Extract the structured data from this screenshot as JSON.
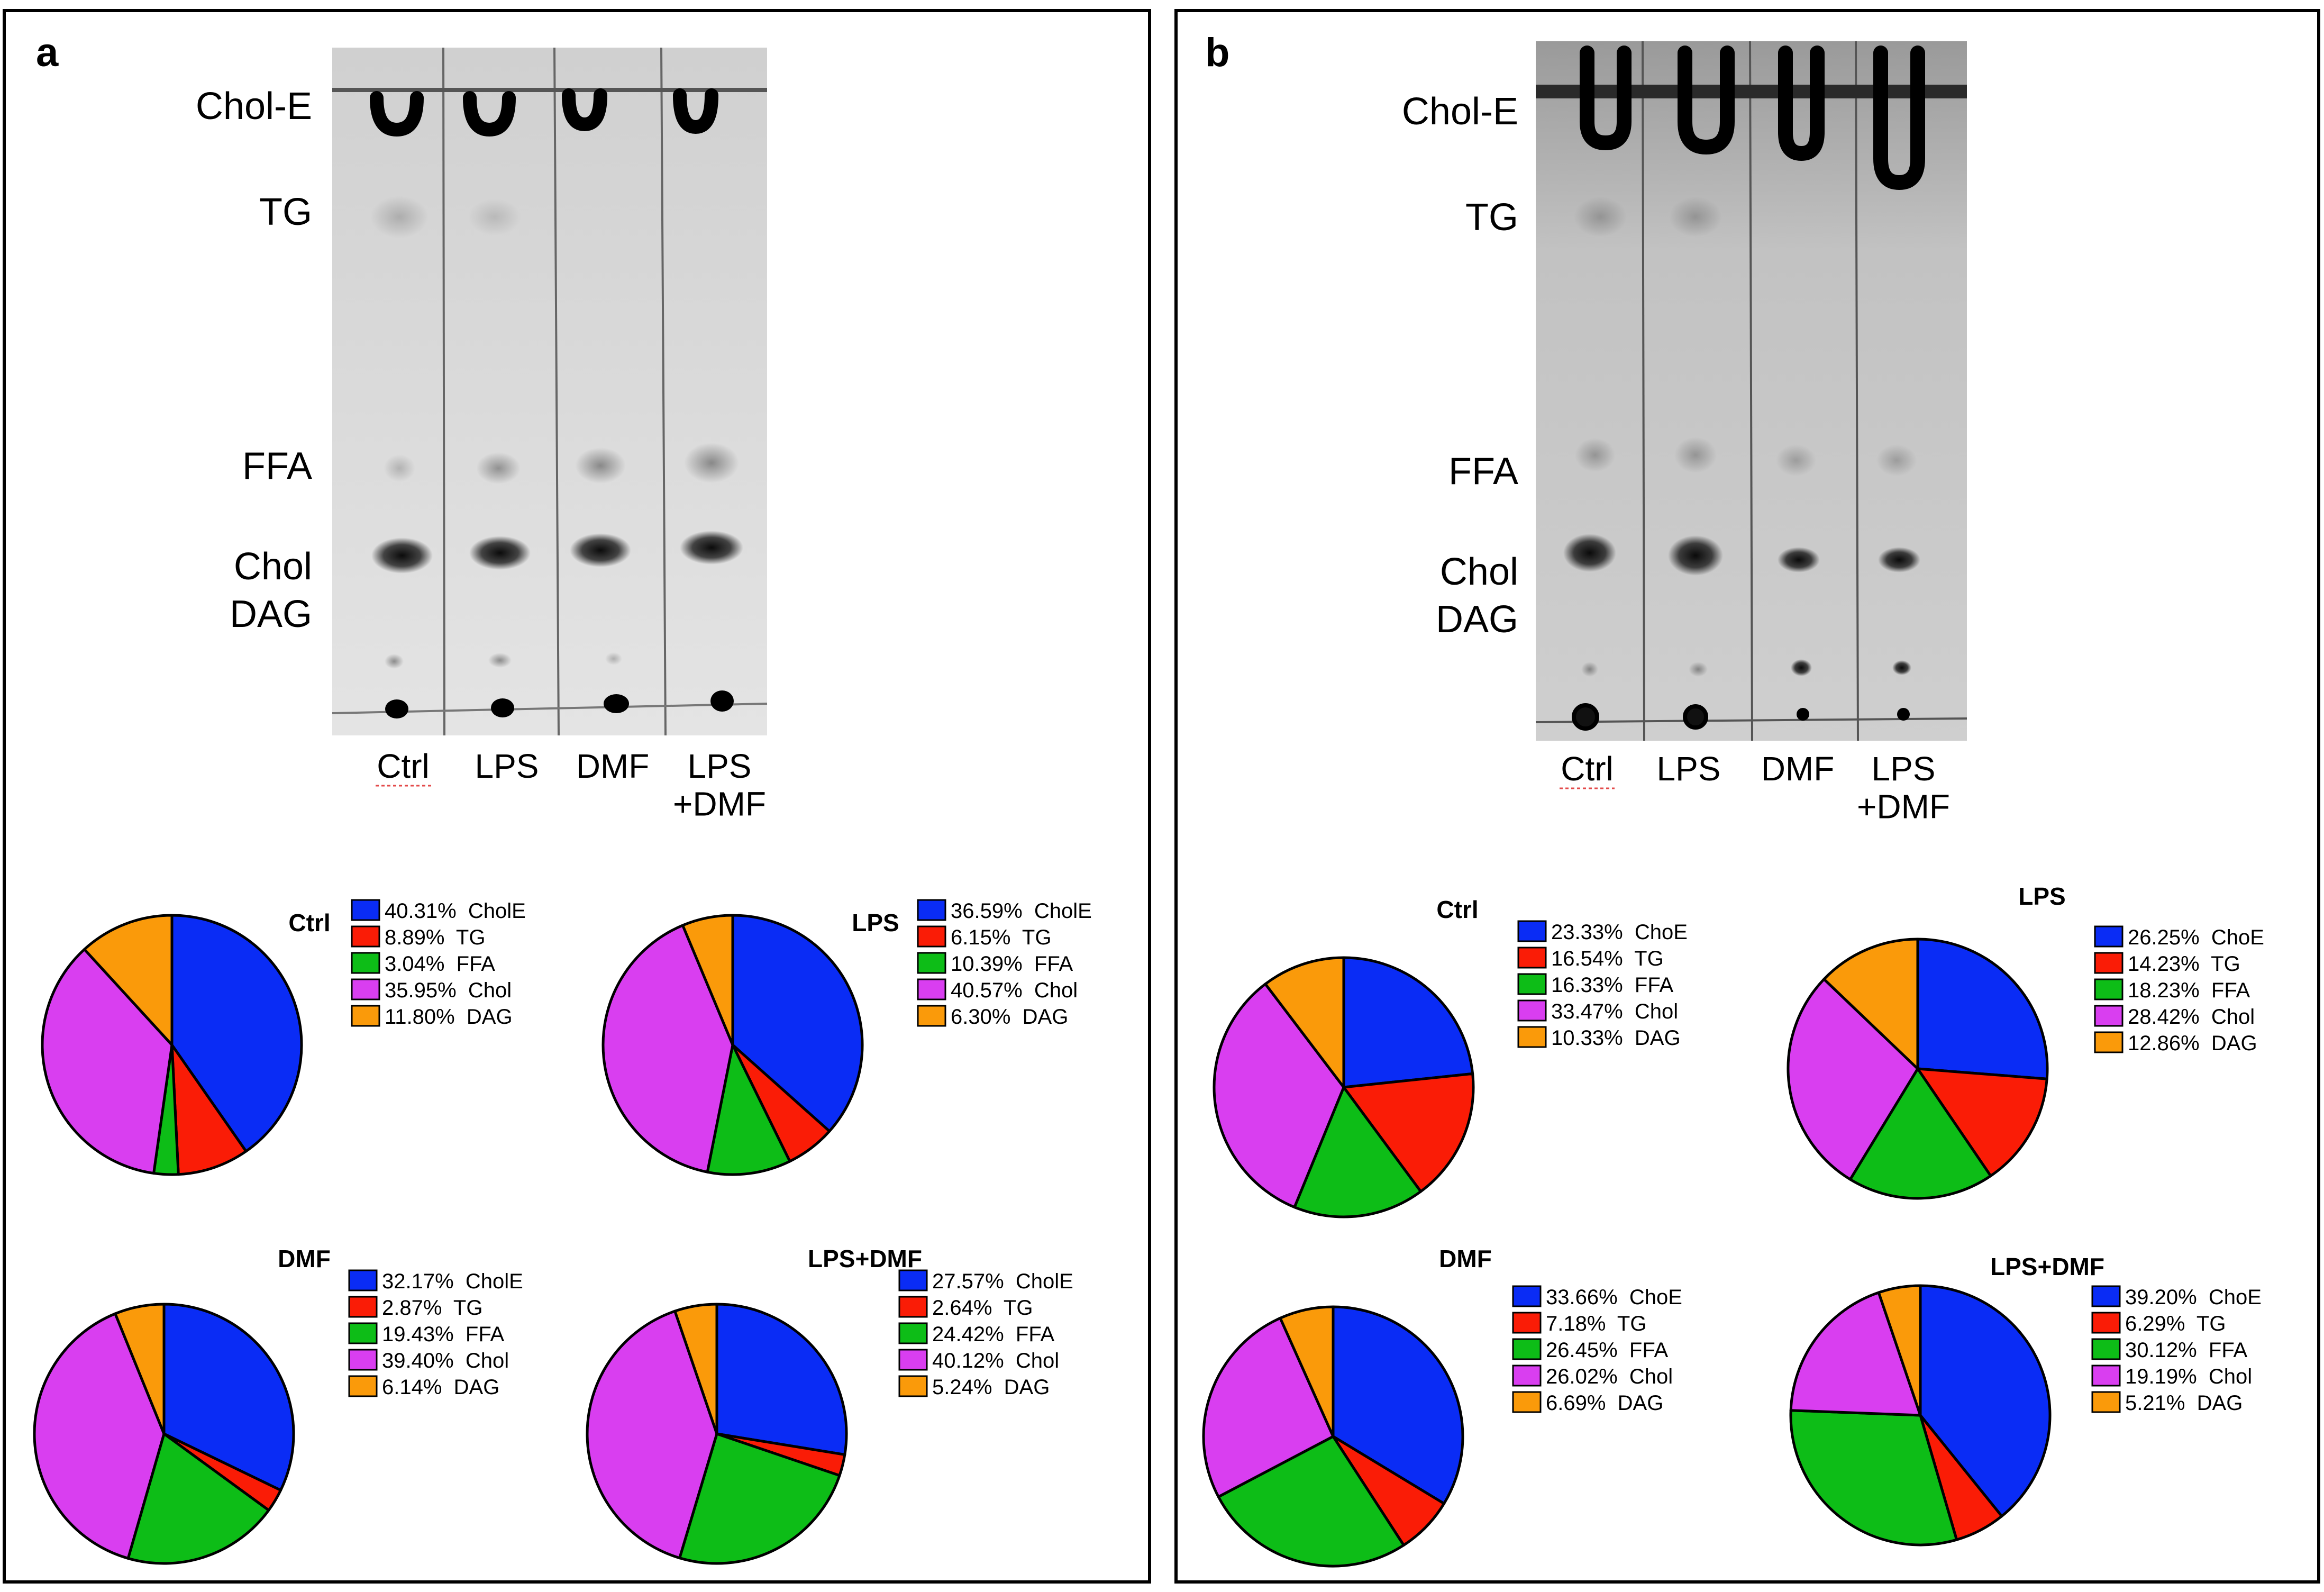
{
  "panels": [
    {
      "letter": "a",
      "band_labels": [
        "Chol-E",
        "TG",
        "FFA",
        "Chol",
        "DAG"
      ],
      "lanes": [
        "Ctrl",
        "LPS",
        "DMF",
        "LPS\n+DMF"
      ]
    },
    {
      "letter": "b",
      "band_labels": [
        "Chol-E",
        "TG",
        "FFA",
        "Chol",
        "DAG"
      ],
      "lanes": [
        "Ctrl",
        "LPS",
        "DMF",
        "LPS\n+DMF"
      ]
    }
  ],
  "colors": {
    "CholE": "#0a2cf5",
    "TG": "#fa1c06",
    "FFA": "#0dbd17",
    "Chol": "#d93ef0",
    "DAG": "#fa9a0a"
  },
  "chart_data": [
    {
      "type": "pie",
      "title": "Ctrl",
      "categories": [
        "CholE",
        "TG",
        "FFA",
        "Chol",
        "DAG"
      ],
      "values": [
        40.31,
        8.89,
        3.04,
        35.95,
        11.8
      ],
      "legend": [
        "40.31%  CholE",
        "8.89%  TG",
        "3.04%  FFA",
        "35.95%  Chol",
        "11.80%  DAG"
      ]
    },
    {
      "type": "pie",
      "title": "LPS",
      "categories": [
        "CholE",
        "TG",
        "FFA",
        "Chol",
        "DAG"
      ],
      "values": [
        36.59,
        6.15,
        10.39,
        40.57,
        6.3
      ],
      "legend": [
        "36.59%  CholE",
        "6.15%  TG",
        "10.39%  FFA",
        "40.57%  Chol",
        "6.30%  DAG"
      ]
    },
    {
      "type": "pie",
      "title": "DMF",
      "categories": [
        "CholE",
        "TG",
        "FFA",
        "Chol",
        "DAG"
      ],
      "values": [
        32.17,
        2.87,
        19.43,
        39.4,
        6.14
      ],
      "legend": [
        "32.17%  CholE",
        "2.87%  TG",
        "19.43%  FFA",
        "39.40%  Chol",
        "6.14%  DAG"
      ]
    },
    {
      "type": "pie",
      "title": "LPS+DMF",
      "categories": [
        "CholE",
        "TG",
        "FFA",
        "Chol",
        "DAG"
      ],
      "values": [
        27.57,
        2.64,
        24.42,
        40.12,
        5.24
      ],
      "legend": [
        "27.57%  CholE",
        "2.64%  TG",
        "24.42%  FFA",
        "40.12%  Chol",
        "5.24%  DAG"
      ]
    },
    {
      "type": "pie",
      "title": "Ctrl",
      "categories": [
        "ChoE",
        "TG",
        "FFA",
        "Chol",
        "DAG"
      ],
      "values": [
        23.33,
        16.54,
        16.33,
        33.47,
        10.33
      ],
      "legend": [
        "23.33%  ChoE",
        "16.54%  TG",
        "16.33%  FFA",
        "33.47%  Chol",
        "10.33%  DAG"
      ]
    },
    {
      "type": "pie",
      "title": "LPS",
      "categories": [
        "ChoE",
        "TG",
        "FFA",
        "Chol",
        "DAG"
      ],
      "values": [
        26.25,
        14.23,
        18.23,
        28.42,
        12.86
      ],
      "legend": [
        "26.25%  ChoE",
        "14.23%  TG",
        "18.23%  FFA",
        "28.42%  Chol",
        "12.86%  DAG"
      ]
    },
    {
      "type": "pie",
      "title": "DMF",
      "categories": [
        "ChoE",
        "TG",
        "FFA",
        "Chol",
        "DAG"
      ],
      "values": [
        33.66,
        7.18,
        26.45,
        26.02,
        6.69
      ],
      "legend": [
        "33.66%  ChoE",
        "7.18%  TG",
        "26.45%  FFA",
        "26.02%  Chol",
        "6.69%  DAG"
      ]
    },
    {
      "type": "pie",
      "title": "LPS+DMF",
      "categories": [
        "ChoE",
        "TG",
        "FFA",
        "Chol",
        "DAG"
      ],
      "values": [
        39.2,
        6.29,
        30.12,
        19.19,
        5.21
      ],
      "legend": [
        "39.20%  ChoE",
        "6.29%  TG",
        "30.12%  FFA",
        "19.19%  Chol",
        "5.21%  DAG"
      ]
    }
  ]
}
